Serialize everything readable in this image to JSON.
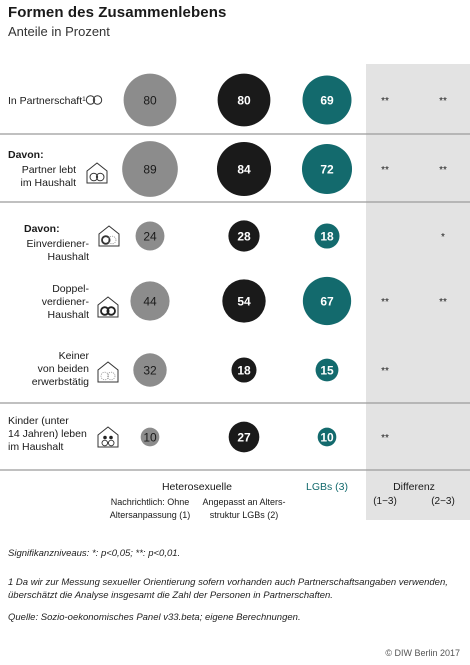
{
  "header": {
    "title": "Formen des Zusammenlebens",
    "subtitle": "Anteile in Prozent"
  },
  "chart_data": {
    "type": "bubble-table",
    "title": "Formen des Zusammenlebens",
    "subtitle": "Anteile in Prozent",
    "columns": [
      {
        "key": "hetero1",
        "label": "Nachrichtlich: Ohne Altersanpassung (1)",
        "color": "#8c8c8c"
      },
      {
        "key": "hetero2",
        "label": "Angepasst an Altersstruktur LGBs (2)",
        "color": "#1a1a1a"
      },
      {
        "key": "lgb",
        "label": "LGBs (3)",
        "color": "#136a6d"
      }
    ],
    "group_header": "Heterosexuelle",
    "diff_header": "Differenz",
    "diff_columns": [
      "(1−3)",
      "(2−3)"
    ],
    "rows": [
      {
        "label": [
          "In Partnerschaft"
        ],
        "sup": "1",
        "values": [
          80,
          80,
          69
        ],
        "diff": [
          "**",
          "**"
        ]
      },
      {
        "prefix": "Davon:",
        "label": [
          "Partner lebt",
          "im Haushalt"
        ],
        "values": [
          89,
          84,
          72
        ],
        "diff": [
          "**",
          "**"
        ]
      },
      {
        "prefix": "Davon:",
        "label": [
          "Einverdiener-",
          "Haushalt"
        ],
        "values": [
          24,
          28,
          18
        ],
        "diff": [
          "",
          "*"
        ]
      },
      {
        "label": [
          "Doppel-",
          "verdiener-",
          "Haushalt"
        ],
        "values": [
          44,
          54,
          67
        ],
        "diff": [
          "**",
          "**"
        ]
      },
      {
        "label": [
          "Keiner",
          "von beiden",
          "erwerbstätig"
        ],
        "values": [
          32,
          18,
          15
        ],
        "diff": [
          "**",
          ""
        ]
      },
      {
        "label": [
          "Kinder (unter",
          "14 Jahren) leben",
          "im Haushalt"
        ],
        "values": [
          10,
          27,
          10
        ],
        "diff": [
          "**",
          ""
        ]
      }
    ]
  },
  "footer": {
    "significance": "Signifikanzniveaus: *: p<0,05; **: p<0,01.",
    "footnote": "1 Da wir zur Messung sexueller Orientierung sofern vorhanden auch Partnerschaftsangaben verwenden, überschätzt die Analyse insgesamt die Zahl der Personen in Partnerschaften.",
    "source": "Quelle: Sozio-oekonomisches Panel v33.beta; eigene Berechnungen.",
    "credit": "© DIW Berlin 2017"
  }
}
